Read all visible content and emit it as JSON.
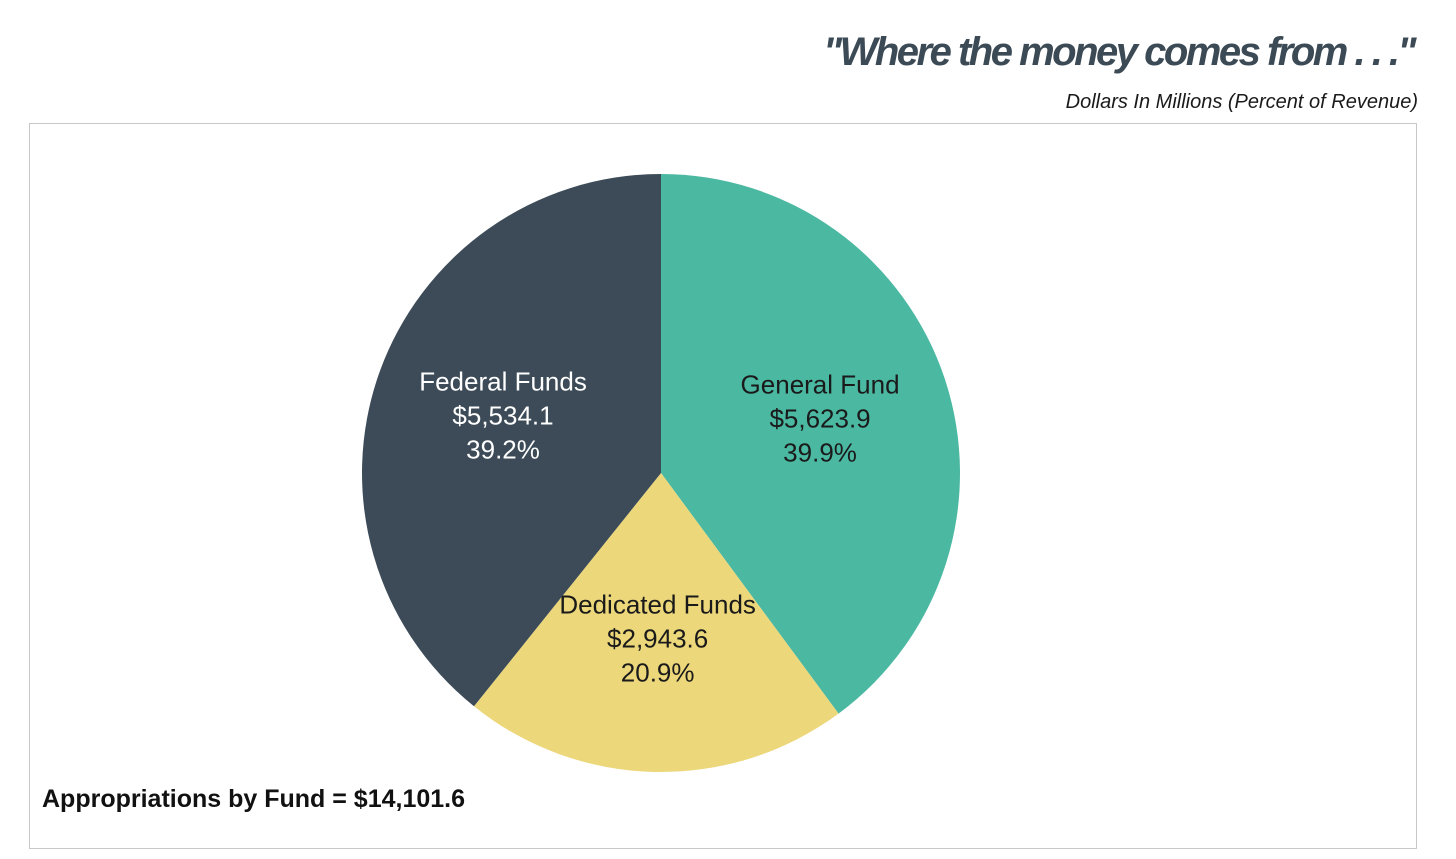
{
  "chart_data": {
    "type": "pie",
    "title": "\"Where the money comes from . . .\"",
    "subtitle": "Dollars In Millions (Percent of Revenue)",
    "slices": [
      {
        "label": "General Fund",
        "value_text": "$5,623.9",
        "percent_text": "39.9%",
        "value": 5623.9,
        "percent": 39.9,
        "color": "#4bb8a2",
        "text_color": "#1a1a1a"
      },
      {
        "label": "Dedicated Funds",
        "value_text": "$2,943.6",
        "percent_text": "20.9%",
        "value": 2943.6,
        "percent": 20.9,
        "color": "#ecd77a",
        "text_color": "#1a1a1a"
      },
      {
        "label": "Federal Funds",
        "value_text": "$5,534.1",
        "percent_text": "39.2%",
        "value": 5534.1,
        "percent": 39.2,
        "color": "#3c4b57",
        "text_color": "#ffffff"
      }
    ],
    "total_label": "Appropriations by Fund = $14,101.6"
  }
}
